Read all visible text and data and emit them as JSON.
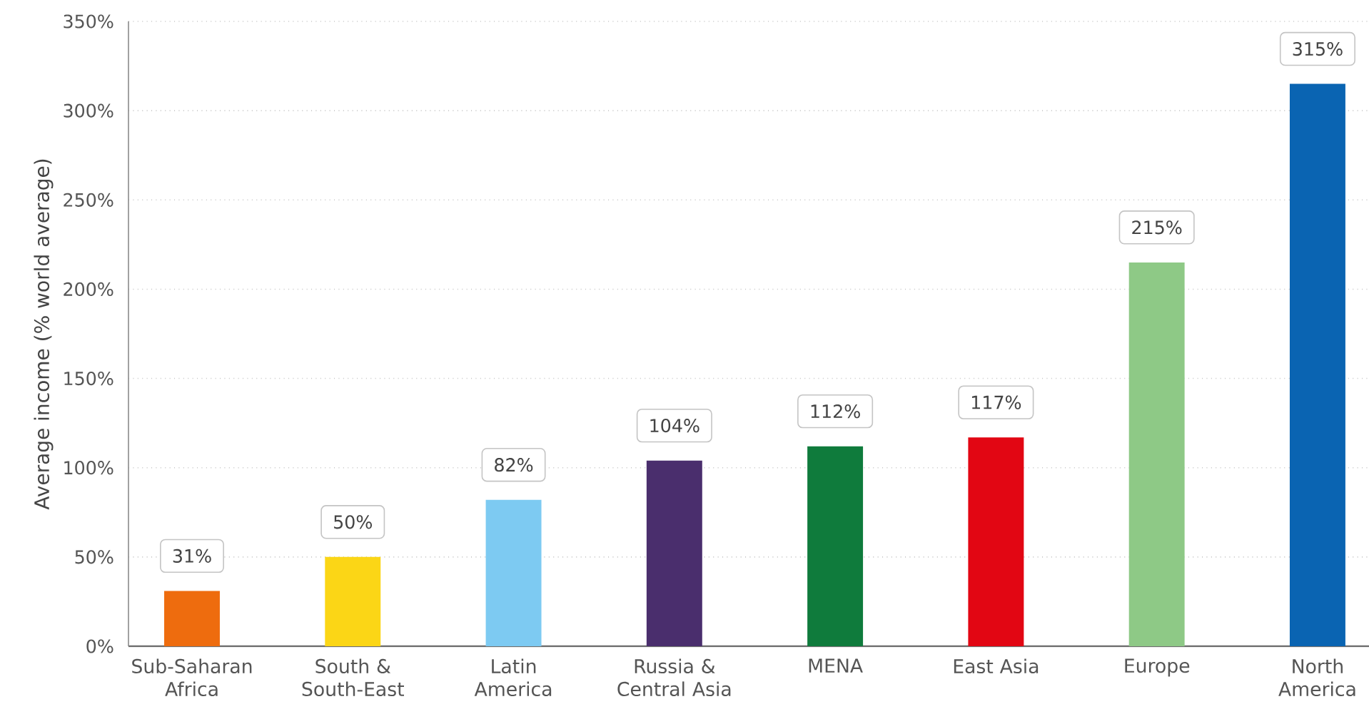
{
  "chart_data": {
    "type": "bar",
    "ylabel": "Average income (% world average)",
    "categories": [
      "Sub-Saharan Africa",
      "South & South-East",
      "Latin America",
      "Russia & Central Asia",
      "MENA",
      "East Asia",
      "Europe",
      "North America"
    ],
    "values": [
      31,
      50,
      82,
      104,
      112,
      117,
      215,
      315
    ],
    "colors": [
      "#ee6c0e",
      "#fbd616",
      "#7dcaf2",
      "#4a2e6d",
      "#0f7b3c",
      "#e20613",
      "#8ec986",
      "#0a64b2"
    ],
    "value_labels": [
      "31%",
      "50%",
      "82%",
      "104%",
      "112%",
      "117%",
      "215%",
      "315%"
    ],
    "ylim": [
      0,
      350
    ],
    "yticks": [
      {
        "value": 0,
        "label": "0%"
      },
      {
        "value": 50,
        "label": "50%"
      },
      {
        "value": 100,
        "label": "100%"
      },
      {
        "value": 150,
        "label": "150%"
      },
      {
        "value": 200,
        "label": "200%"
      },
      {
        "value": 250,
        "label": "250%"
      },
      {
        "value": 300,
        "label": "300%"
      },
      {
        "value": 350,
        "label": "350%"
      }
    ],
    "grid": "y"
  }
}
